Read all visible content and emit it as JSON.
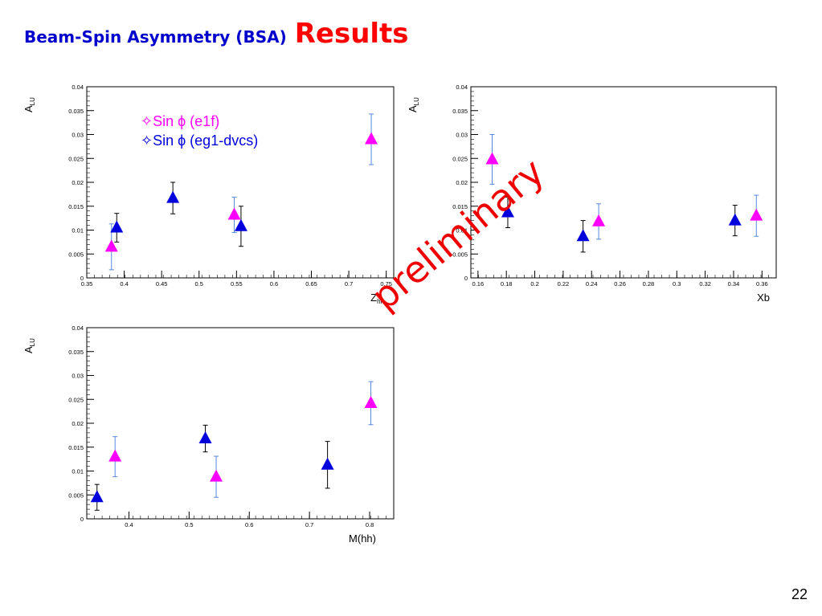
{
  "slide": {
    "title": "Beam-Spin Asymmetry (BSA)",
    "title_emphasis": "Results",
    "page_number": "22",
    "watermark": "preliminary",
    "legend": [
      {
        "label": "✧Sin ϕ (e1f)",
        "color": "#ff00ff"
      },
      {
        "label": "✧Sin ϕ (eg1-dvcs)",
        "color": "#0000dd"
      }
    ]
  },
  "chart_data": [
    {
      "type": "scatter",
      "xlabel": "Z",
      "xlabel_sub": "hh",
      "ylabel": "A",
      "ylabel_sub": "LU",
      "xlim": [
        0.35,
        0.76
      ],
      "ylim": [
        0,
        0.04
      ],
      "xticks": [
        "0.35",
        "0.4",
        "0.45",
        "0.5",
        "0.55",
        "0.6",
        "0.65",
        "0.7",
        "0.75"
      ],
      "yticks": [
        "0",
        "0.005",
        "0.01",
        "0.015",
        "0.02",
        "0.025",
        "0.03",
        "0.035",
        "0.04"
      ],
      "series": [
        {
          "name": "✧Sin ϕ (e1f)",
          "color": "#ff00ff",
          "errcolor": "#5588dd",
          "x": [
            0.383,
            0.547,
            0.73
          ],
          "y": [
            0.0065,
            0.0132,
            0.029
          ],
          "err": [
            0.0048,
            0.0037,
            0.0053
          ]
        },
        {
          "name": "✧Sin ϕ (eg1-dvcs)",
          "color": "#0000dd",
          "errcolor": "#000000",
          "x": [
            0.39,
            0.465,
            0.556
          ],
          "y": [
            0.0105,
            0.0167,
            0.0108
          ],
          "err": [
            0.003,
            0.0033,
            0.0042
          ]
        }
      ]
    },
    {
      "type": "scatter",
      "xlabel": "Xb",
      "ylabel": "A",
      "ylabel_sub": "LU",
      "xlim": [
        0.155,
        0.37
      ],
      "ylim": [
        0,
        0.04
      ],
      "xticks": [
        "0.16",
        "0.18",
        "0.2",
        "0.22",
        "0.24",
        "0.26",
        "0.28",
        "0.3",
        "0.32",
        "0.34",
        "0.36"
      ],
      "yticks": [
        "0",
        "0.005",
        "0.01",
        "0.015",
        "0.02",
        "0.025",
        "0.03",
        "0.035",
        "0.04"
      ],
      "series": [
        {
          "name": "✧Sin ϕ (e1f)",
          "color": "#ff00ff",
          "errcolor": "#5588dd",
          "x": [
            0.17,
            0.245,
            0.356
          ],
          "y": [
            0.0248,
            0.0118,
            0.013
          ],
          "err": [
            0.0052,
            0.0037,
            0.0043
          ]
        },
        {
          "name": "✧Sin ϕ (eg1-dvcs)",
          "color": "#0000dd",
          "errcolor": "#000000",
          "x": [
            0.181,
            0.234,
            0.341
          ],
          "y": [
            0.0137,
            0.0087,
            0.012
          ],
          "err": [
            0.0032,
            0.0033,
            0.0032
          ]
        }
      ]
    },
    {
      "type": "scatter",
      "xlabel": "M(hh)",
      "ylabel": "A",
      "ylabel_sub": "LU",
      "xlim": [
        0.33,
        0.84
      ],
      "ylim": [
        0,
        0.04
      ],
      "xticks": [
        "0.4",
        "0.5",
        "0.6",
        "0.7",
        "0.8"
      ],
      "xtickvals": [
        0.4,
        0.5,
        0.6,
        0.7,
        0.8
      ],
      "yticks": [
        "0",
        "0.005",
        "0.01",
        "0.015",
        "0.02",
        "0.025",
        "0.03",
        "0.035",
        "0.04"
      ],
      "series": [
        {
          "name": "✧Sin ϕ (e1f)",
          "color": "#ff00ff",
          "errcolor": "#5588dd",
          "x": [
            0.377,
            0.545,
            0.802
          ],
          "y": [
            0.013,
            0.0088,
            0.0242
          ],
          "err": [
            0.0042,
            0.0043,
            0.0045
          ]
        },
        {
          "name": "✧Sin ϕ (eg1-dvcs)",
          "color": "#0000dd",
          "errcolor": "#000000",
          "x": [
            0.347,
            0.527,
            0.73
          ],
          "y": [
            0.0045,
            0.0168,
            0.0113
          ],
          "err": [
            0.0027,
            0.0028,
            0.0049
          ]
        }
      ]
    }
  ]
}
